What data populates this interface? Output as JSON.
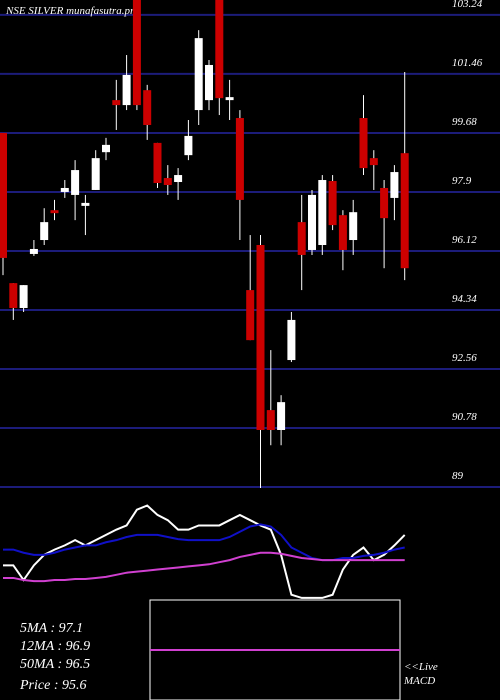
{
  "chart_data": [
    {
      "type": "candlestick",
      "title": "NSE SILVER munafasutra.pro",
      "up_color": "#ffffff",
      "down_color": "#cc0000",
      "grid": true,
      "grid_color": "#1c1c7a",
      "ylim": [
        88.91,
        103.69
      ],
      "yticks": [
        103.24,
        101.46,
        99.68,
        97.9,
        96.12,
        94.34,
        92.56,
        90.78,
        89
      ],
      "open": [
        99.68,
        95.15,
        94.4,
        96.03,
        96.45,
        97.35,
        97.9,
        97.81,
        97.48,
        97.96,
        99.1,
        100.67,
        100.52,
        103.69,
        100.97,
        99.38,
        98.32,
        98.2,
        99.01,
        100.37,
        100.67,
        103.69,
        100.67,
        100.13,
        94.94,
        96.3,
        91.32,
        90.72,
        92.83,
        96.99,
        96.15,
        96.3,
        98.23,
        97.2,
        96.45,
        100.13,
        98.92,
        98.02,
        97.72,
        99.07
      ],
      "high": [
        99.68,
        95.15,
        95.09,
        96.45,
        97.41,
        97.66,
        98.26,
        98.86,
        97.81,
        99.16,
        99.53,
        101.28,
        102.03,
        103.69,
        101.13,
        99.38,
        98.71,
        98.62,
        100.07,
        102.78,
        101.88,
        103.69,
        101.28,
        100.37,
        96.6,
        96.6,
        93.13,
        91.77,
        94.28,
        97.81,
        97.96,
        98.41,
        98.41,
        97.35,
        97.66,
        100.82,
        99.16,
        98.26,
        98.71,
        101.52
      ],
      "low": [
        95.39,
        94.04,
        94.28,
        95.97,
        96.3,
        97.05,
        97.72,
        97.05,
        96.6,
        97.96,
        98.86,
        99.77,
        100.37,
        100.37,
        99.47,
        98.02,
        97.81,
        97.66,
        98.86,
        99.92,
        100.37,
        100.22,
        100.07,
        96.45,
        93.43,
        88.97,
        90.26,
        90.26,
        92.77,
        94.94,
        96.0,
        96.0,
        96.75,
        95.54,
        96.0,
        98.41,
        97.96,
        95.6,
        97.05,
        95.24
      ],
      "close": [
        95.91,
        94.4,
        95.09,
        96.18,
        96.99,
        97.26,
        98.02,
        98.56,
        97.57,
        98.92,
        99.32,
        100.52,
        101.43,
        100.52,
        99.92,
        98.17,
        98.11,
        98.41,
        99.59,
        102.54,
        101.73,
        100.73,
        100.76,
        97.66,
        93.43,
        90.72,
        90.72,
        91.56,
        94.04,
        96.0,
        97.81,
        98.26,
        96.9,
        96.15,
        97.29,
        98.62,
        98.71,
        97.11,
        98.5,
        95.6
      ]
    },
    {
      "type": "line",
      "ylim": [
        0,
        100
      ],
      "series": [
        {
          "color": "#ffffff",
          "values": [
            33,
            33,
            19,
            33,
            43,
            48,
            52,
            57,
            52,
            57,
            62,
            67,
            71,
            86,
            90,
            81,
            76,
            67,
            67,
            71,
            71,
            71,
            76,
            81,
            76,
            71,
            67,
            43,
            5,
            2,
            2,
            2,
            5,
            29,
            43,
            50,
            38,
            43,
            52,
            62
          ]
        },
        {
          "color": "#1010c8",
          "values": [
            48,
            48,
            45,
            43,
            43,
            45,
            48,
            50,
            52,
            52,
            55,
            57,
            60,
            62,
            62,
            62,
            60,
            58,
            57,
            57,
            57,
            57,
            60,
            65,
            70,
            72,
            70,
            62,
            50,
            45,
            40,
            38,
            38,
            40,
            40,
            42,
            43,
            45,
            48,
            50
          ]
        },
        {
          "color": "#d040d0",
          "values": [
            21,
            21,
            19,
            18,
            18,
            19,
            19,
            20,
            20,
            21,
            22,
            24,
            26,
            27,
            28,
            29,
            30,
            31,
            32,
            33,
            34,
            36,
            38,
            41,
            43,
            45,
            45,
            44,
            42,
            40,
            39,
            38,
            38,
            38,
            38,
            38,
            38,
            38,
            38,
            38
          ]
        }
      ],
      "stats": [
        "5MA : 97.1",
        "12MA : 96.9",
        "50MA : 96.5",
        "Price  : 95.6"
      ],
      "live": "<<Live",
      "macd": "MACD"
    }
  ]
}
